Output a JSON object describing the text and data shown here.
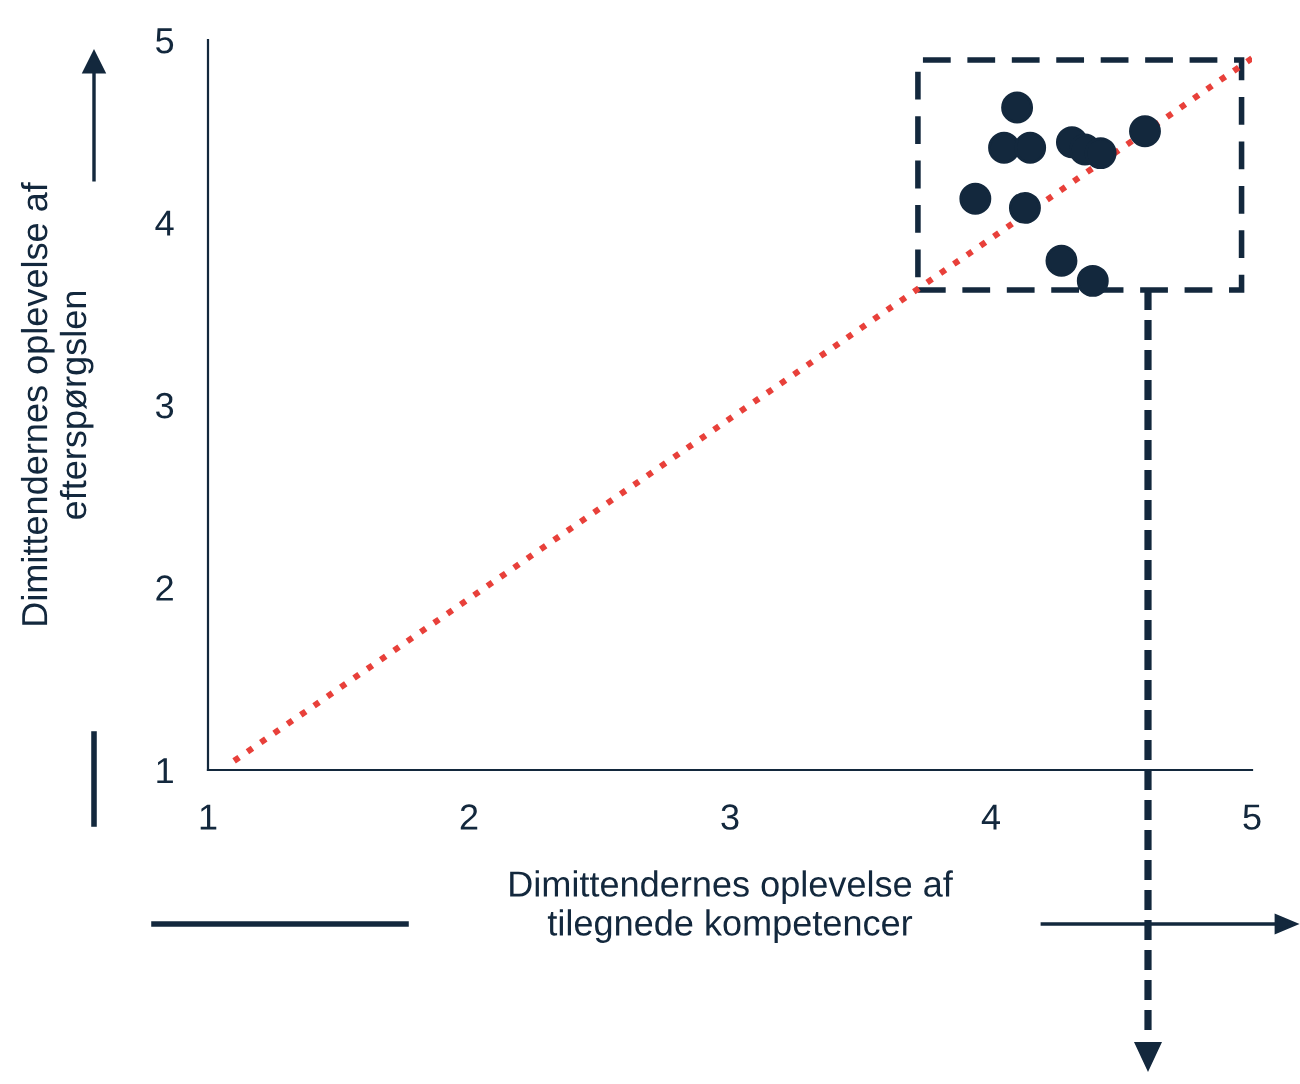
{
  "chart_data": {
    "type": "scatter",
    "xlabel": "Dimittendernes oplevelse af\ntilegnede kompetencer",
    "ylabel": "Dimittendernes oplevelse af\nefterspørgslen",
    "xlim": [
      1,
      5
    ],
    "ylim": [
      1,
      5
    ],
    "xticks": [
      1,
      2,
      3,
      4,
      5
    ],
    "yticks": [
      1,
      2,
      3,
      4,
      5
    ],
    "grid": false,
    "marker": "circle",
    "series": [
      {
        "color": "#13283d",
        "x": [
          4.1,
          4.05,
          4.15,
          4.31,
          4.36,
          4.42,
          4.59,
          3.94,
          4.13,
          4.27,
          4.39
        ],
        "values": [
          4.63,
          4.41,
          4.41,
          4.44,
          4.4,
          4.38,
          4.5,
          4.13,
          4.08,
          3.79,
          3.68
        ]
      },
      {
        "type": "line",
        "color": "#e8403a",
        "line_style": "dotted",
        "marker": "none",
        "x": [
          1.1,
          5.0
        ],
        "values": [
          1.05,
          4.9
        ]
      }
    ]
  }
}
